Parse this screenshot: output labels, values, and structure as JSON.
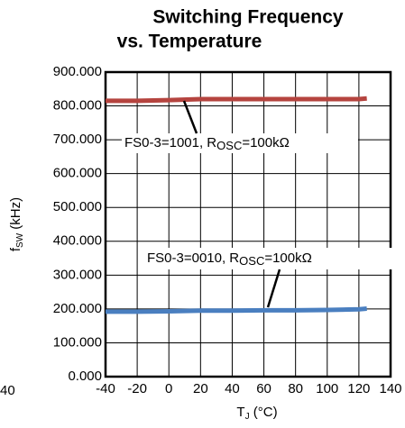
{
  "chart_data": {
    "type": "line",
    "title": [
      "Switching Frequency",
      "vs. Temperature"
    ],
    "x_label": [
      "T",
      "J",
      " (°C)"
    ],
    "y_label": [
      "f",
      "SW",
      " (kHz)"
    ],
    "annotation": "40",
    "x": [
      -40,
      -20,
      0,
      20,
      40,
      60,
      80,
      100,
      120,
      125
    ],
    "series": [
      {
        "label": [
          "FS0-3=1001, R",
          "OSC",
          "=100kΩ"
        ],
        "color": "#b5443f",
        "values": [
          815,
          815,
          817,
          820,
          820,
          820,
          820,
          820,
          820,
          822
        ]
      },
      {
        "label": [
          "FS0-3=0010, R",
          "OSC",
          "=100kΩ"
        ],
        "color": "#4a7fc0",
        "values": [
          192,
          192,
          193,
          195,
          195,
          196,
          196,
          197,
          199,
          201
        ]
      }
    ],
    "xlim": [
      -40,
      140
    ],
    "xticks": [
      -40,
      -20,
      0,
      20,
      40,
      60,
      80,
      100,
      120,
      140
    ],
    "ylim": [
      0,
      900
    ],
    "yticks": [
      {
        "value": 0,
        "label": "0.000"
      },
      {
        "value": 100,
        "label": "100.000"
      },
      {
        "value": 200,
        "label": "200.000"
      },
      {
        "value": 300,
        "label": "300.000"
      },
      {
        "value": 400,
        "label": "400.000"
      },
      {
        "value": 500,
        "label": "500.000"
      },
      {
        "value": 600,
        "label": "600.000"
      },
      {
        "value": 700,
        "label": "700.000"
      },
      {
        "value": 800,
        "label": "800.000"
      },
      {
        "value": 900,
        "label": "900.000"
      }
    ],
    "grid": true
  }
}
